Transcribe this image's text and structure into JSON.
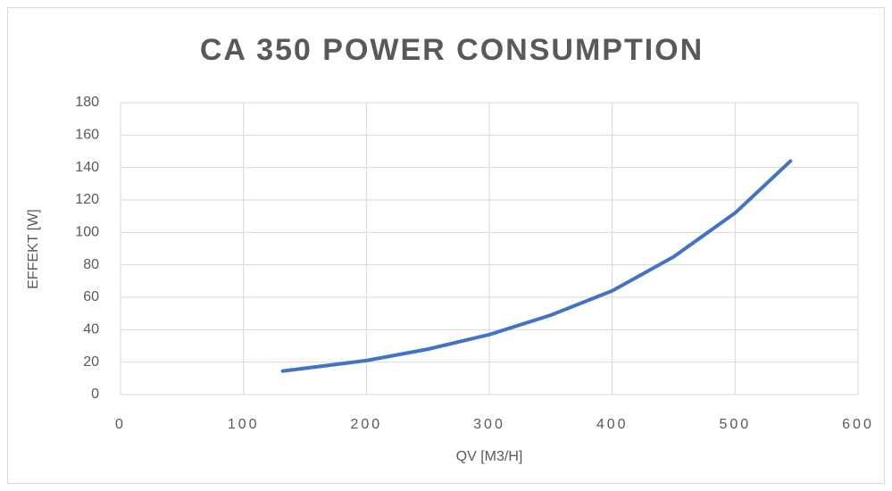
{
  "chart_data": {
    "type": "line",
    "title": "CA 350 POWER CONSUMPTION",
    "x_label": "QV [M3/H]",
    "y_label": "EFFEKT [W]",
    "series": [
      {
        "name": "CA 350",
        "color": "#4472c4",
        "x": [
          132,
          200,
          250,
          300,
          350,
          400,
          450,
          500,
          545
        ],
        "values": [
          14.5,
          21,
          28,
          37,
          49,
          64,
          85,
          112,
          144
        ]
      }
    ],
    "xlim": [
      0,
      600
    ],
    "xticks": [
      0,
      100,
      200,
      300,
      400,
      500,
      600
    ],
    "ylim": [
      0,
      180
    ],
    "yticks": [
      0,
      20,
      40,
      60,
      80,
      100,
      120,
      140,
      160,
      180
    ],
    "grid": true
  }
}
